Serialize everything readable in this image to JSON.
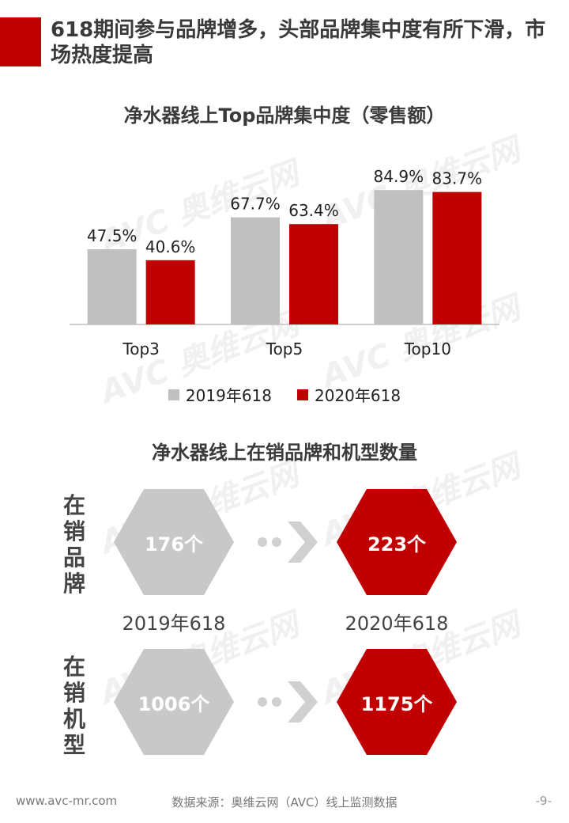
{
  "header": {
    "title": "618期间参与品牌增多，头部品牌集中度有所下滑，市场热度提高"
  },
  "chart1": {
    "title": "净水器线上Top品牌集中度（零售额）"
  },
  "chart_data": {
    "type": "bar",
    "categories": [
      "Top3",
      "Top5",
      "Top10"
    ],
    "series": [
      {
        "name": "2019年618",
        "values": [
          47.5,
          67.7,
          84.9
        ],
        "labels": [
          "47.5%",
          "67.7%",
          "84.9%"
        ],
        "color": "#c0c0c0"
      },
      {
        "name": "2020年618",
        "values": [
          40.6,
          63.4,
          83.7
        ],
        "labels": [
          "40.6%",
          "63.4%",
          "83.7%"
        ],
        "color": "#c00000"
      }
    ],
    "ylim": [
      0,
      100
    ],
    "grid": false,
    "legend": "bottom"
  },
  "section2": {
    "title": "净水器线上在销品牌和机型数量",
    "row1_label": "在销品牌",
    "row2_label": "在销机型",
    "brands_2019": "176个",
    "brands_2020": "223个",
    "models_2019": "1006个",
    "models_2020": "1175个",
    "year_2019": "2019年618",
    "year_2020": "2020年618"
  },
  "watermark": "AVC 奥维云网",
  "footer": {
    "website": "www.avc-mr.com",
    "source": "数据来源：奥维云网（AVC）线上监测数据",
    "page": "-9-"
  }
}
